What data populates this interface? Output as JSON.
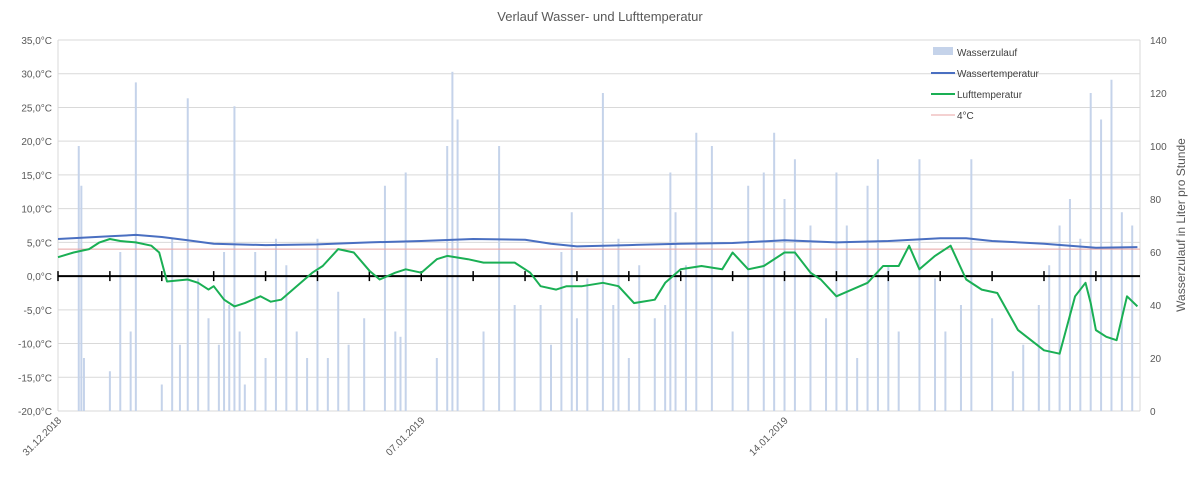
{
  "chart_data": {
    "type": "combo-bar-line",
    "title": "Verlauf Wasser- und Lufttemperatur",
    "y_left": {
      "range": [
        -20,
        35
      ],
      "ticks": [
        "35,0°C",
        "30,0°C",
        "25,0°C",
        "20,0°C",
        "15,0°C",
        "10,0°C",
        "5,0°C",
        "0,0°C",
        "-5,0°C",
        "-10,0°C",
        "-15,0°C",
        "-20,0°C"
      ],
      "tick_values": [
        35,
        30,
        25,
        20,
        15,
        10,
        5,
        0,
        -5,
        -10,
        -15,
        -20
      ]
    },
    "y_right": {
      "label": "Wasserzulauf in Liter pro Stunde",
      "range": [
        0,
        140
      ],
      "ticks": [
        "140",
        "120",
        "100",
        "80",
        "60",
        "40",
        "20",
        "0"
      ],
      "tick_values": [
        140,
        120,
        100,
        80,
        60,
        40,
        20,
        0
      ]
    },
    "x_axis": {
      "start_date": "31.12.2018",
      "end_date": "21.01.2019",
      "ticks": [
        "31.12.2018",
        "07.01.2019",
        "14.01.2019"
      ],
      "tick_days": [
        0,
        7,
        14
      ]
    },
    "legend": {
      "position": "top-right",
      "items": [
        {
          "label": "Wasserzulauf",
          "color": "#c5d3ea",
          "kind": "bar"
        },
        {
          "label": "Wassertemperatur",
          "color": "#4a6fc1",
          "kind": "line"
        },
        {
          "label": "Lufttemperatur",
          "color": "#1aaf54",
          "kind": "line"
        },
        {
          "label": "4°C",
          "color": "#e8a3a3",
          "kind": "line"
        }
      ]
    },
    "reference_line": {
      "label": "4°C",
      "value": 4
    },
    "grid": true,
    "series": [
      {
        "name": "Lufttemperatur",
        "x_days": [
          0,
          0.3,
          0.6,
          0.8,
          1.0,
          1.2,
          1.5,
          1.8,
          1.95,
          2.1,
          2.5,
          2.7,
          2.9,
          3.0,
          3.2,
          3.4,
          3.6,
          3.9,
          4.1,
          4.3,
          4.6,
          4.9,
          5.1,
          5.4,
          5.7,
          6.0,
          6.2,
          6.5,
          6.7,
          7.0,
          7.3,
          7.5,
          7.9,
          8.2,
          8.5,
          8.8,
          9.1,
          9.3,
          9.6,
          9.8,
          10.1,
          10.5,
          10.8,
          11.1,
          11.5,
          11.7,
          12.0,
          12.4,
          12.8,
          13.0,
          13.3,
          13.6,
          14.0,
          14.2,
          14.5,
          14.7,
          15.0,
          15.3,
          15.6,
          15.9,
          16.2,
          16.4,
          16.6,
          16.9,
          17.2,
          17.5,
          17.8,
          18.1,
          18.5,
          19.0,
          19.3,
          19.6,
          19.8,
          19.9,
          20.0,
          20.2,
          20.4,
          20.6,
          20.8
        ],
        "values": [
          2.8,
          3.5,
          4.0,
          5.0,
          5.5,
          5.2,
          5.0,
          4.5,
          3.5,
          -0.8,
          -0.5,
          -1.0,
          -2.0,
          -1.5,
          -3.5,
          -4.5,
          -4.0,
          -3.0,
          -3.8,
          -3.5,
          -1.5,
          0.5,
          1.5,
          4.0,
          3.5,
          0.8,
          -0.5,
          0.5,
          1.0,
          0.5,
          2.5,
          3.0,
          2.5,
          2.0,
          2.0,
          2.0,
          0.5,
          -1.5,
          -2.0,
          -1.5,
          -1.5,
          -1.0,
          -1.5,
          -4.0,
          -3.5,
          -1.0,
          1.0,
          1.5,
          1.0,
          3.5,
          1.0,
          1.5,
          3.5,
          3.5,
          0.5,
          -0.5,
          -3.0,
          -2.0,
          -1.0,
          1.5,
          1.5,
          4.5,
          1.0,
          3.0,
          4.5,
          -0.5,
          -2.0,
          -2.5,
          -8.0,
          -11.0,
          -11.5,
          -3.0,
          -1.0,
          -4.0,
          -8.0,
          -9.0,
          -9.5,
          -3.0,
          -4.5
        ]
      },
      {
        "name": "Wassertemperatur",
        "x_days": [
          0,
          1.0,
          1.5,
          2.0,
          2.5,
          3.0,
          4.0,
          5.0,
          6.0,
          7.0,
          8.0,
          9.0,
          9.5,
          10.0,
          11.0,
          12.0,
          13.0,
          14.0,
          15.0,
          16.0,
          17.0,
          17.5,
          18.0,
          19.0,
          20.0,
          20.8
        ],
        "values": [
          5.5,
          5.9,
          6.1,
          5.8,
          5.3,
          4.8,
          4.6,
          4.7,
          5.0,
          5.2,
          5.5,
          5.4,
          4.8,
          4.4,
          4.6,
          4.8,
          4.9,
          5.3,
          5.0,
          5.2,
          5.6,
          5.6,
          5.2,
          4.8,
          4.2,
          4.3
        ]
      }
    ],
    "bar_series": {
      "name": "Wasserzulauf",
      "x_days": [
        0.4,
        0.45,
        0.5,
        1.0,
        1.2,
        1.4,
        1.5,
        2.0,
        2.2,
        2.35,
        2.5,
        2.7,
        2.9,
        3.1,
        3.2,
        3.3,
        3.4,
        3.5,
        3.6,
        3.8,
        4.0,
        4.2,
        4.4,
        4.6,
        4.8,
        5.0,
        5.2,
        5.4,
        5.6,
        5.9,
        6.3,
        6.5,
        6.6,
        6.7,
        7.3,
        7.5,
        7.6,
        7.7,
        8.2,
        8.5,
        8.8,
        9.3,
        9.5,
        9.7,
        9.9,
        10.0,
        10.2,
        10.5,
        10.7,
        10.8,
        11.0,
        11.2,
        11.5,
        11.7,
        11.8,
        11.9,
        12.1,
        12.3,
        12.6,
        13.0,
        13.3,
        13.6,
        13.8,
        14.0,
        14.2,
        14.5,
        14.8,
        15.0,
        15.2,
        15.4,
        15.6,
        15.8,
        16.0,
        16.2,
        16.6,
        16.9,
        17.1,
        17.4,
        17.6,
        18.0,
        18.4,
        18.6,
        18.9,
        19.1,
        19.3,
        19.5,
        19.7,
        19.9,
        20.1,
        20.3,
        20.5,
        20.7
      ],
      "values": [
        100,
        85,
        20,
        15,
        60,
        30,
        124,
        10,
        65,
        25,
        118,
        50,
        35,
        25,
        60,
        40,
        115,
        30,
        10,
        60,
        20,
        65,
        55,
        30,
        20,
        65,
        20,
        45,
        25,
        35,
        85,
        30,
        28,
        90,
        20,
        100,
        128,
        110,
        30,
        100,
        40,
        40,
        25,
        60,
        75,
        35,
        50,
        120,
        40,
        65,
        20,
        55,
        35,
        40,
        90,
        75,
        55,
        105,
        100,
        30,
        85,
        90,
        105,
        80,
        95,
        70,
        35,
        90,
        70,
        20,
        85,
        95,
        55,
        30,
        95,
        50,
        30,
        40,
        95,
        35,
        15,
        25,
        40,
        55,
        70,
        80,
        65,
        120,
        110,
        125,
        75,
        70
      ]
    }
  }
}
